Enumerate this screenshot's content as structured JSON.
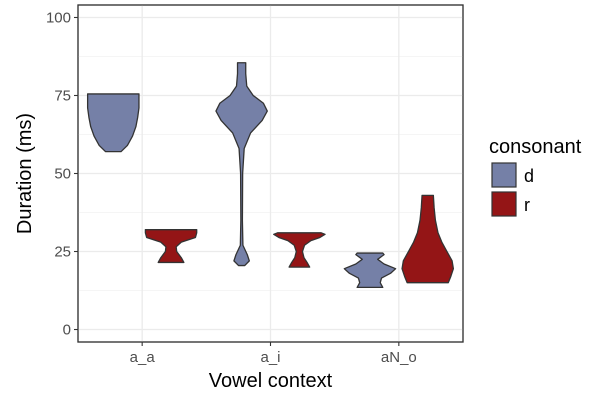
{
  "chart_data": {
    "type": "violin",
    "title": "",
    "xlabel": "Vowel context",
    "ylabel": "Duration (ms)",
    "ylim": [
      -4,
      104
    ],
    "yticks": [
      0,
      25,
      50,
      75,
      100
    ],
    "categories": [
      "a_a",
      "a_i",
      "aN_o"
    ],
    "grid": true,
    "legend": {
      "title": "consonant",
      "position": "right",
      "entries": [
        {
          "label": "d",
          "color": "#7580a7"
        },
        {
          "label": "r",
          "color": "#941516"
        }
      ]
    },
    "series": [
      {
        "name": "d",
        "color": "#7580a7",
        "violins": [
          {
            "category": "a_a",
            "min": 57,
            "max": 75.5,
            "profile": [
              [
                57,
                0.3
              ],
              [
                59,
                0.55
              ],
              [
                62,
                0.75
              ],
              [
                65,
                0.88
              ],
              [
                68,
                0.95
              ],
              [
                71,
                1.0
              ],
              [
                73.5,
                1.0
              ],
              [
                75.5,
                1.0
              ]
            ]
          },
          {
            "category": "a_i",
            "min": 20.5,
            "max": 85.5,
            "profile": [
              [
                20.5,
                0.12
              ],
              [
                22,
                0.3
              ],
              [
                24,
                0.22
              ],
              [
                27,
                0.05
              ],
              [
                35,
                0.03
              ],
              [
                50,
                0.04
              ],
              [
                58,
                0.1
              ],
              [
                63,
                0.35
              ],
              [
                67,
                0.8
              ],
              [
                70,
                1.0
              ],
              [
                72.5,
                0.85
              ],
              [
                75,
                0.45
              ],
              [
                78,
                0.2
              ],
              [
                82,
                0.16
              ],
              [
                85.5,
                0.16
              ]
            ]
          },
          {
            "category": "aN_o",
            "min": 13.5,
            "max": 24.5,
            "profile": [
              [
                13.5,
                0.5
              ],
              [
                15,
                0.4
              ],
              [
                16.5,
                0.45
              ],
              [
                18,
                0.8
              ],
              [
                19.5,
                1.0
              ],
              [
                21,
                0.55
              ],
              [
                22.5,
                0.3
              ],
              [
                24,
                0.55
              ],
              [
                24.5,
                0.5
              ]
            ]
          }
        ]
      },
      {
        "name": "r",
        "color": "#941516",
        "violins": [
          {
            "category": "a_a",
            "min": 21.5,
            "max": 32,
            "profile": [
              [
                21.5,
                0.5
              ],
              [
                23,
                0.4
              ],
              [
                25,
                0.22
              ],
              [
                26.5,
                0.2
              ],
              [
                28,
                0.4
              ],
              [
                29.5,
                0.95
              ],
              [
                31,
                1.0
              ],
              [
                32,
                1.0
              ]
            ]
          },
          {
            "category": "a_i",
            "min": 20,
            "max": 31,
            "profile": [
              [
                20,
                0.4
              ],
              [
                21.5,
                0.3
              ],
              [
                23,
                0.18
              ],
              [
                25,
                0.12
              ],
              [
                27,
                0.2
              ],
              [
                28.5,
                0.45
              ],
              [
                29.5,
                0.8
              ],
              [
                30.5,
                1.0
              ],
              [
                31,
                0.85
              ]
            ]
          },
          {
            "category": "aN_o",
            "min": 15,
            "max": 43,
            "profile": [
              [
                15,
                0.8
              ],
              [
                17,
                0.9
              ],
              [
                19.5,
                1.0
              ],
              [
                22,
                0.95
              ],
              [
                25,
                0.75
              ],
              [
                28,
                0.55
              ],
              [
                31,
                0.4
              ],
              [
                35,
                0.3
              ],
              [
                39,
                0.25
              ],
              [
                43,
                0.22
              ]
            ]
          }
        ]
      }
    ]
  }
}
